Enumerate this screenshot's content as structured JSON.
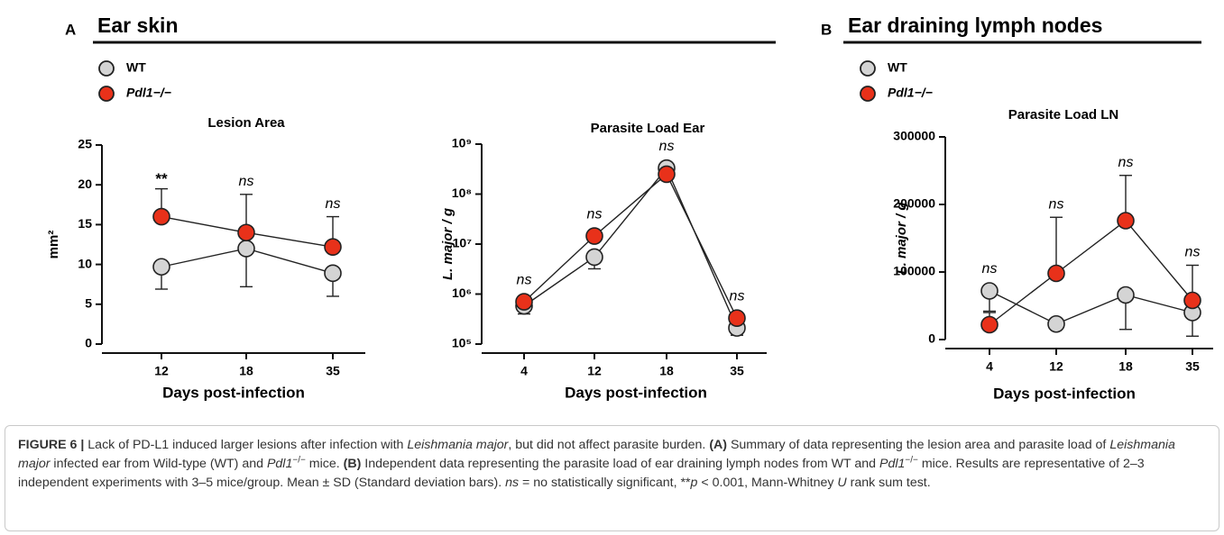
{
  "panels": [
    {
      "label": "A",
      "heading": "Ear skin"
    },
    {
      "label": "B",
      "heading": "Ear draining lymph nodes"
    }
  ],
  "chart_data": [
    {
      "type": "line",
      "title": "Lesion Area",
      "x_label": "Days post-infection",
      "y_label": "mm²",
      "categories": [
        "12",
        "18",
        "35"
      ],
      "ylim": [
        0,
        25
      ],
      "yticks": [
        0,
        5,
        10,
        15,
        20,
        25
      ],
      "annotations": [
        "**",
        "ns",
        "ns"
      ],
      "series": [
        {
          "name": "WT",
          "color": "#d4d4d4",
          "values": [
            9.7,
            12,
            8.9
          ],
          "errors": [
            2.8,
            4.8,
            2.9
          ],
          "error_direction": "down"
        },
        {
          "name": "Pdl1−/−",
          "color": "#e8311a",
          "values": [
            16,
            14,
            12.2
          ],
          "errors": [
            3.5,
            4.8,
            3.8
          ],
          "error_direction": "up"
        }
      ]
    },
    {
      "type": "line",
      "title": "Parasite Load Ear",
      "x_label": "Days post-infection",
      "y_label": "L. major / g",
      "categories": [
        "4",
        "12",
        "18",
        "35"
      ],
      "log_scale": true,
      "ylim": [
        100000,
        1000000000
      ],
      "yticks": [
        {
          "value": 100000,
          "label": "10⁵"
        },
        {
          "value": 1000000,
          "label": "10⁶"
        },
        {
          "value": 10000000,
          "label": "10⁷"
        },
        {
          "value": 100000000,
          "label": "10⁸"
        },
        {
          "value": 1000000000,
          "label": "10⁹"
        }
      ],
      "annotations": [
        "ns",
        "ns",
        "ns",
        "ns"
      ],
      "series": [
        {
          "name": "WT",
          "color": "#d4d4d4",
          "values": [
            580000,
            5500000,
            330000000,
            210000
          ],
          "errors": [
            180000,
            2300000,
            120000000,
            60000
          ],
          "error_direction": "down"
        },
        {
          "name": "Pdl1−/−",
          "color": "#e8311a",
          "values": [
            700000,
            14500000,
            250000000,
            330000
          ],
          "errors": [
            100000,
            3000000,
            90000000,
            50000
          ],
          "error_direction": "up"
        }
      ]
    },
    {
      "type": "line",
      "title": "Parasite Load LN",
      "x_label": "Days post-infection",
      "y_label": "L. major / g",
      "categories": [
        "4",
        "12",
        "18",
        "35"
      ],
      "ylim": [
        0,
        300000
      ],
      "yticks": [
        0,
        100000,
        200000,
        300000
      ],
      "annotations": [
        "ns",
        "ns",
        "ns",
        "ns"
      ],
      "series": [
        {
          "name": "WT",
          "color": "#d4d4d4",
          "values": [
            72000,
            23000,
            66000,
            40000
          ],
          "errors": [
            30000,
            0,
            51000,
            35000
          ],
          "error_direction": "down"
        },
        {
          "name": "Pdl1−/−",
          "color": "#e8311a",
          "values": [
            22000,
            98000,
            176000,
            58000
          ],
          "errors": [
            18000,
            83000,
            67000,
            52000
          ],
          "error_direction": "up"
        }
      ]
    }
  ],
  "caption": {
    "parts": [
      "FIGURE 6 |",
      " Lack of PD-L1 induced larger lesions after infection with ",
      "Leishmania major",
      ", but did not affect parasite burden. ",
      "(A)",
      " Summary of data representing the lesion area and parasite load of ",
      "Leishmania major",
      " infected ear from Wild-type (WT) and ",
      "Pdl1",
      "−/−",
      " mice. ",
      "(B)",
      " Independent data representing the parasite load of ear draining lymph nodes from WT and ",
      "Pdl1",
      "−/−",
      " mice. Results are representative of 2–3 independent experiments with 3–5 mice/group. Mean ± SD (Standard deviation bars). ",
      "ns",
      " = no statistically significant, **",
      "p",
      " < 0.001, Mann-Whitney ",
      "U",
      " rank sum test."
    ]
  }
}
